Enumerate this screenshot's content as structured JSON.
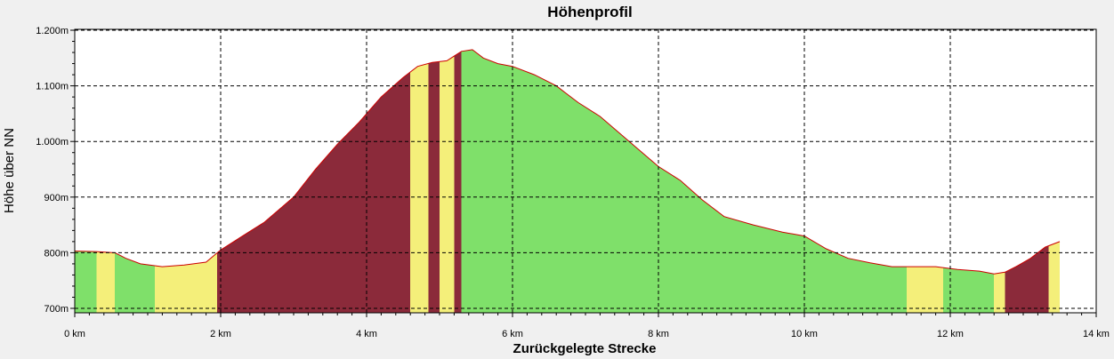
{
  "chart_data": {
    "type": "area",
    "title": "Höhenprofil",
    "xlabel": "Zurückgelegte Strecke",
    "ylabel": "Höhe über NN",
    "xlim": [
      0,
      14
    ],
    "ylim": [
      700,
      1200
    ],
    "x_ticks": [
      0,
      2,
      4,
      6,
      8,
      10,
      12,
      14
    ],
    "x_tick_labels": [
      "0 km",
      "2 km",
      "4 km",
      "6 km",
      "8 km",
      "10 km",
      "12 km",
      "14 km"
    ],
    "y_ticks": [
      700,
      800,
      900,
      1000,
      1100,
      1200
    ],
    "y_tick_labels": [
      "700m",
      "800m",
      "900m",
      "1.000m",
      "1.100m",
      "1.200m"
    ],
    "grid": true,
    "colors": {
      "flat": "#7fe06a",
      "moderate": "#f4ef7a",
      "steep": "#8b2a3a",
      "line": "#cc0000",
      "plot_bg": "#ffffff"
    },
    "x": [
      0,
      0.3,
      0.55,
      0.7,
      0.9,
      1.2,
      1.5,
      1.8,
      2.0,
      2.3,
      2.6,
      3.0,
      3.3,
      3.6,
      3.9,
      4.2,
      4.5,
      4.7,
      4.9,
      5.1,
      5.3,
      5.45,
      5.6,
      5.8,
      6.0,
      6.3,
      6.6,
      6.9,
      7.2,
      7.6,
      8.0,
      8.3,
      8.6,
      8.9,
      9.3,
      9.7,
      10.0,
      10.3,
      10.6,
      10.9,
      11.2,
      11.5,
      11.8,
      12.1,
      12.4,
      12.6,
      12.75,
      12.9,
      13.1,
      13.3,
      13.5
    ],
    "y": [
      803,
      802,
      800,
      790,
      780,
      775,
      778,
      783,
      805,
      830,
      855,
      900,
      950,
      995,
      1035,
      1080,
      1115,
      1135,
      1142,
      1145,
      1162,
      1165,
      1150,
      1140,
      1135,
      1120,
      1100,
      1070,
      1045,
      1000,
      955,
      930,
      895,
      865,
      850,
      837,
      830,
      807,
      790,
      782,
      775,
      775,
      775,
      770,
      767,
      762,
      765,
      775,
      790,
      810,
      820
    ],
    "slope_bands": [
      {
        "from": 0.0,
        "to": 0.3,
        "class": "flat"
      },
      {
        "from": 0.3,
        "to": 0.55,
        "class": "moderate"
      },
      {
        "from": 0.55,
        "to": 1.1,
        "class": "flat"
      },
      {
        "from": 1.1,
        "to": 1.7,
        "class": "moderate"
      },
      {
        "from": 1.7,
        "to": 1.95,
        "class": "moderate"
      },
      {
        "from": 1.95,
        "to": 4.6,
        "class": "steep"
      },
      {
        "from": 4.6,
        "to": 4.85,
        "class": "moderate"
      },
      {
        "from": 4.85,
        "to": 5.0,
        "class": "steep"
      },
      {
        "from": 5.0,
        "to": 5.2,
        "class": "moderate"
      },
      {
        "from": 5.2,
        "to": 5.3,
        "class": "steep"
      },
      {
        "from": 5.3,
        "to": 11.4,
        "class": "flat"
      },
      {
        "from": 11.4,
        "to": 11.9,
        "class": "moderate"
      },
      {
        "from": 11.9,
        "to": 12.6,
        "class": "flat"
      },
      {
        "from": 12.6,
        "to": 12.75,
        "class": "moderate"
      },
      {
        "from": 12.75,
        "to": 13.35,
        "class": "steep"
      },
      {
        "from": 13.35,
        "to": 13.5,
        "class": "moderate"
      }
    ]
  }
}
